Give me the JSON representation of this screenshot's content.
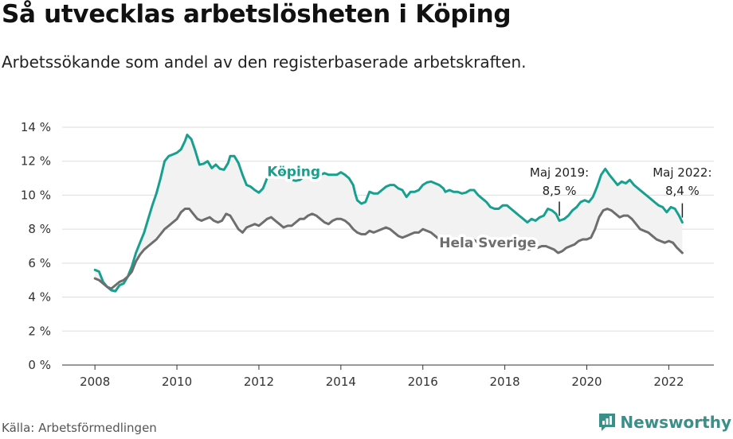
{
  "title": "Så utvecklas arbetslösheten i Köping",
  "subtitle": "Arbetssökande som andel av den registerbaserade arbetskraften.",
  "source": "Källa: Arbetsförmedlingen",
  "logo": {
    "text": "Newsworthy",
    "icon": "chart-bubble-icon"
  },
  "colors": {
    "koping": "#17a08f",
    "sverige": "#6e6e6e",
    "band": "#f2f2f2",
    "grid": "#dddddd"
  },
  "chart_data": {
    "type": "line",
    "x_range": [
      2007.2,
      2023.1
    ],
    "ylim": [
      0,
      14
    ],
    "y_ticks": [
      {
        "value": 0,
        "label": "0 %"
      },
      {
        "value": 2,
        "label": "2 %"
      },
      {
        "value": 4,
        "label": "4 %"
      },
      {
        "value": 6,
        "label": "6 %"
      },
      {
        "value": 8,
        "label": "8 %"
      },
      {
        "value": 10,
        "label": "10 %"
      },
      {
        "value": 12,
        "label": "12 %"
      },
      {
        "value": 14,
        "label": "14 %"
      }
    ],
    "x_ticks": [
      {
        "value": 2008,
        "label": "2008"
      },
      {
        "value": 2010,
        "label": "2010"
      },
      {
        "value": 2012,
        "label": "2012"
      },
      {
        "value": 2014,
        "label": "2014"
      },
      {
        "value": 2016,
        "label": "2016"
      },
      {
        "value": 2018,
        "label": "2018"
      },
      {
        "value": 2020,
        "label": "2020"
      },
      {
        "value": 2022,
        "label": "2022"
      }
    ],
    "grid": true,
    "series": [
      {
        "name": "Köping",
        "key": "koping",
        "points": [
          [
            2008.0,
            5.6
          ],
          [
            2008.1,
            5.5
          ],
          [
            2008.2,
            4.9
          ],
          [
            2008.3,
            4.6
          ],
          [
            2008.4,
            4.4
          ],
          [
            2008.5,
            4.35
          ],
          [
            2008.6,
            4.7
          ],
          [
            2008.7,
            4.8
          ],
          [
            2008.8,
            5.2
          ],
          [
            2008.9,
            5.8
          ],
          [
            2009.0,
            6.6
          ],
          [
            2009.1,
            7.2
          ],
          [
            2009.2,
            7.8
          ],
          [
            2009.3,
            8.6
          ],
          [
            2009.4,
            9.4
          ],
          [
            2009.5,
            10.1
          ],
          [
            2009.6,
            11.0
          ],
          [
            2009.7,
            12.0
          ],
          [
            2009.8,
            12.3
          ],
          [
            2009.9,
            12.4
          ],
          [
            2010.0,
            12.5
          ],
          [
            2010.1,
            12.7
          ],
          [
            2010.2,
            13.2
          ],
          [
            2010.25,
            13.55
          ],
          [
            2010.35,
            13.3
          ],
          [
            2010.45,
            12.6
          ],
          [
            2010.55,
            11.8
          ],
          [
            2010.65,
            11.85
          ],
          [
            2010.75,
            12.0
          ],
          [
            2010.85,
            11.6
          ],
          [
            2010.95,
            11.8
          ],
          [
            2011.05,
            11.55
          ],
          [
            2011.15,
            11.5
          ],
          [
            2011.25,
            11.9
          ],
          [
            2011.3,
            12.3
          ],
          [
            2011.4,
            12.3
          ],
          [
            2011.5,
            11.9
          ],
          [
            2011.6,
            11.2
          ],
          [
            2011.7,
            10.6
          ],
          [
            2011.8,
            10.5
          ],
          [
            2011.9,
            10.3
          ],
          [
            2012.0,
            10.15
          ],
          [
            2012.1,
            10.4
          ],
          [
            2012.2,
            11.0
          ],
          [
            2012.3,
            11.6
          ],
          [
            2012.4,
            11.5
          ],
          [
            2012.5,
            11.6
          ],
          [
            2012.6,
            11.3
          ],
          [
            2012.7,
            11.0
          ],
          [
            2012.8,
            10.9
          ],
          [
            2012.9,
            10.85
          ],
          [
            2013.0,
            10.9
          ],
          [
            2013.1,
            11.1
          ],
          [
            2013.2,
            11.2
          ],
          [
            2013.3,
            11.1
          ],
          [
            2013.4,
            10.9
          ],
          [
            2013.5,
            11.2
          ],
          [
            2013.6,
            11.3
          ],
          [
            2013.7,
            11.2
          ],
          [
            2013.8,
            11.2
          ],
          [
            2013.9,
            11.2
          ],
          [
            2014.0,
            11.35
          ],
          [
            2014.1,
            11.2
          ],
          [
            2014.2,
            11.0
          ],
          [
            2014.3,
            10.6
          ],
          [
            2014.35,
            10.1
          ],
          [
            2014.4,
            9.7
          ],
          [
            2014.5,
            9.5
          ],
          [
            2014.6,
            9.6
          ],
          [
            2014.7,
            10.2
          ],
          [
            2014.8,
            10.1
          ],
          [
            2014.9,
            10.1
          ],
          [
            2015.0,
            10.3
          ],
          [
            2015.1,
            10.5
          ],
          [
            2015.2,
            10.6
          ],
          [
            2015.3,
            10.6
          ],
          [
            2015.4,
            10.4
          ],
          [
            2015.5,
            10.3
          ],
          [
            2015.6,
            9.9
          ],
          [
            2015.7,
            10.2
          ],
          [
            2015.8,
            10.2
          ],
          [
            2015.9,
            10.3
          ],
          [
            2016.0,
            10.6
          ],
          [
            2016.1,
            10.75
          ],
          [
            2016.2,
            10.8
          ],
          [
            2016.3,
            10.7
          ],
          [
            2016.4,
            10.6
          ],
          [
            2016.5,
            10.4
          ],
          [
            2016.55,
            10.2
          ],
          [
            2016.65,
            10.3
          ],
          [
            2016.75,
            10.2
          ],
          [
            2016.85,
            10.2
          ],
          [
            2016.95,
            10.1
          ],
          [
            2017.05,
            10.15
          ],
          [
            2017.15,
            10.3
          ],
          [
            2017.25,
            10.3
          ],
          [
            2017.35,
            10.0
          ],
          [
            2017.45,
            9.8
          ],
          [
            2017.55,
            9.6
          ],
          [
            2017.65,
            9.3
          ],
          [
            2017.75,
            9.2
          ],
          [
            2017.85,
            9.2
          ],
          [
            2017.95,
            9.4
          ],
          [
            2018.05,
            9.4
          ],
          [
            2018.15,
            9.2
          ],
          [
            2018.25,
            9.0
          ],
          [
            2018.35,
            8.8
          ],
          [
            2018.45,
            8.6
          ],
          [
            2018.55,
            8.4
          ],
          [
            2018.65,
            8.6
          ],
          [
            2018.75,
            8.5
          ],
          [
            2018.85,
            8.7
          ],
          [
            2018.95,
            8.8
          ],
          [
            2019.05,
            9.2
          ],
          [
            2019.15,
            9.1
          ],
          [
            2019.25,
            8.9
          ],
          [
            2019.33,
            8.5
          ],
          [
            2019.45,
            8.6
          ],
          [
            2019.55,
            8.8
          ],
          [
            2019.65,
            9.1
          ],
          [
            2019.75,
            9.3
          ],
          [
            2019.85,
            9.6
          ],
          [
            2019.95,
            9.7
          ],
          [
            2020.05,
            9.6
          ],
          [
            2020.15,
            9.9
          ],
          [
            2020.25,
            10.5
          ],
          [
            2020.35,
            11.2
          ],
          [
            2020.45,
            11.55
          ],
          [
            2020.55,
            11.2
          ],
          [
            2020.65,
            10.9
          ],
          [
            2020.75,
            10.6
          ],
          [
            2020.85,
            10.8
          ],
          [
            2020.95,
            10.7
          ],
          [
            2021.05,
            10.9
          ],
          [
            2021.15,
            10.6
          ],
          [
            2021.25,
            10.4
          ],
          [
            2021.35,
            10.2
          ],
          [
            2021.45,
            10.0
          ],
          [
            2021.55,
            9.8
          ],
          [
            2021.65,
            9.6
          ],
          [
            2021.75,
            9.4
          ],
          [
            2021.85,
            9.3
          ],
          [
            2021.95,
            9.0
          ],
          [
            2022.05,
            9.3
          ],
          [
            2022.15,
            9.2
          ],
          [
            2022.25,
            8.8
          ],
          [
            2022.33,
            8.4
          ]
        ]
      },
      {
        "name": "Hela Sverige",
        "key": "sverige",
        "points": [
          [
            2008.0,
            5.1
          ],
          [
            2008.1,
            5.0
          ],
          [
            2008.2,
            4.8
          ],
          [
            2008.3,
            4.6
          ],
          [
            2008.4,
            4.5
          ],
          [
            2008.5,
            4.7
          ],
          [
            2008.6,
            4.9
          ],
          [
            2008.7,
            5.0
          ],
          [
            2008.8,
            5.2
          ],
          [
            2008.9,
            5.5
          ],
          [
            2009.0,
            6.1
          ],
          [
            2009.1,
            6.5
          ],
          [
            2009.2,
            6.8
          ],
          [
            2009.3,
            7.0
          ],
          [
            2009.4,
            7.2
          ],
          [
            2009.5,
            7.4
          ],
          [
            2009.6,
            7.7
          ],
          [
            2009.7,
            8.0
          ],
          [
            2009.8,
            8.2
          ],
          [
            2009.9,
            8.4
          ],
          [
            2010.0,
            8.6
          ],
          [
            2010.1,
            9.0
          ],
          [
            2010.2,
            9.2
          ],
          [
            2010.3,
            9.2
          ],
          [
            2010.4,
            8.9
          ],
          [
            2010.5,
            8.6
          ],
          [
            2010.6,
            8.5
          ],
          [
            2010.7,
            8.6
          ],
          [
            2010.8,
            8.7
          ],
          [
            2010.9,
            8.5
          ],
          [
            2011.0,
            8.4
          ],
          [
            2011.1,
            8.5
          ],
          [
            2011.2,
            8.9
          ],
          [
            2011.3,
            8.8
          ],
          [
            2011.4,
            8.4
          ],
          [
            2011.5,
            8.0
          ],
          [
            2011.6,
            7.8
          ],
          [
            2011.7,
            8.1
          ],
          [
            2011.8,
            8.2
          ],
          [
            2011.9,
            8.3
          ],
          [
            2012.0,
            8.2
          ],
          [
            2012.1,
            8.4
          ],
          [
            2012.2,
            8.6
          ],
          [
            2012.3,
            8.7
          ],
          [
            2012.4,
            8.5
          ],
          [
            2012.5,
            8.3
          ],
          [
            2012.6,
            8.1
          ],
          [
            2012.7,
            8.2
          ],
          [
            2012.8,
            8.2
          ],
          [
            2012.9,
            8.4
          ],
          [
            2013.0,
            8.6
          ],
          [
            2013.1,
            8.6
          ],
          [
            2013.2,
            8.8
          ],
          [
            2013.3,
            8.9
          ],
          [
            2013.4,
            8.8
          ],
          [
            2013.5,
            8.6
          ],
          [
            2013.6,
            8.4
          ],
          [
            2013.7,
            8.3
          ],
          [
            2013.8,
            8.5
          ],
          [
            2013.9,
            8.6
          ],
          [
            2014.0,
            8.6
          ],
          [
            2014.1,
            8.5
          ],
          [
            2014.2,
            8.3
          ],
          [
            2014.3,
            8.0
          ],
          [
            2014.4,
            7.8
          ],
          [
            2014.5,
            7.7
          ],
          [
            2014.6,
            7.7
          ],
          [
            2014.7,
            7.9
          ],
          [
            2014.8,
            7.8
          ],
          [
            2014.9,
            7.9
          ],
          [
            2015.0,
            8.0
          ],
          [
            2015.1,
            8.1
          ],
          [
            2015.2,
            8.0
          ],
          [
            2015.3,
            7.8
          ],
          [
            2015.4,
            7.6
          ],
          [
            2015.5,
            7.5
          ],
          [
            2015.6,
            7.6
          ],
          [
            2015.7,
            7.7
          ],
          [
            2015.8,
            7.8
          ],
          [
            2015.9,
            7.8
          ],
          [
            2016.0,
            8.0
          ],
          [
            2016.1,
            7.9
          ],
          [
            2016.2,
            7.8
          ],
          [
            2016.3,
            7.6
          ],
          [
            2016.4,
            7.4
          ],
          [
            2016.5,
            7.3
          ],
          [
            2016.6,
            7.3
          ],
          [
            2016.7,
            7.4
          ],
          [
            2016.8,
            7.4
          ],
          [
            2016.9,
            7.3
          ],
          [
            2017.0,
            7.3
          ],
          [
            2017.1,
            7.4
          ],
          [
            2017.2,
            7.4
          ],
          [
            2017.3,
            7.3
          ],
          [
            2017.4,
            7.1
          ],
          [
            2017.5,
            7.0
          ],
          [
            2017.6,
            7.0
          ],
          [
            2017.7,
            7.0
          ],
          [
            2017.8,
            7.1
          ],
          [
            2017.9,
            7.2
          ],
          [
            2018.0,
            7.2
          ],
          [
            2018.1,
            7.1
          ],
          [
            2018.2,
            7.0
          ],
          [
            2018.3,
            6.9
          ],
          [
            2018.4,
            6.8
          ],
          [
            2018.5,
            6.8
          ],
          [
            2018.6,
            6.8
          ],
          [
            2018.7,
            6.9
          ],
          [
            2018.8,
            6.9
          ],
          [
            2018.9,
            7.0
          ],
          [
            2019.0,
            7.0
          ],
          [
            2019.1,
            6.9
          ],
          [
            2019.2,
            6.8
          ],
          [
            2019.3,
            6.6
          ],
          [
            2019.4,
            6.7
          ],
          [
            2019.5,
            6.9
          ],
          [
            2019.6,
            7.0
          ],
          [
            2019.7,
            7.1
          ],
          [
            2019.8,
            7.3
          ],
          [
            2019.9,
            7.4
          ],
          [
            2020.0,
            7.4
          ],
          [
            2020.1,
            7.5
          ],
          [
            2020.2,
            8.0
          ],
          [
            2020.3,
            8.7
          ],
          [
            2020.4,
            9.1
          ],
          [
            2020.5,
            9.2
          ],
          [
            2020.6,
            9.1
          ],
          [
            2020.7,
            8.9
          ],
          [
            2020.8,
            8.7
          ],
          [
            2020.9,
            8.8
          ],
          [
            2021.0,
            8.8
          ],
          [
            2021.1,
            8.6
          ],
          [
            2021.2,
            8.3
          ],
          [
            2021.3,
            8.0
          ],
          [
            2021.4,
            7.9
          ],
          [
            2021.5,
            7.8
          ],
          [
            2021.6,
            7.6
          ],
          [
            2021.7,
            7.4
          ],
          [
            2021.8,
            7.3
          ],
          [
            2021.9,
            7.2
          ],
          [
            2022.0,
            7.3
          ],
          [
            2022.1,
            7.2
          ],
          [
            2022.2,
            6.9
          ],
          [
            2022.33,
            6.6
          ]
        ]
      }
    ],
    "annotations": [
      {
        "x": 2019.33,
        "series": "koping",
        "line1": "Maj 2019:",
        "line2": "8,5 %"
      },
      {
        "x": 2022.33,
        "series": "koping",
        "line1": "Maj 2022:",
        "line2": "8,4 %"
      }
    ]
  }
}
